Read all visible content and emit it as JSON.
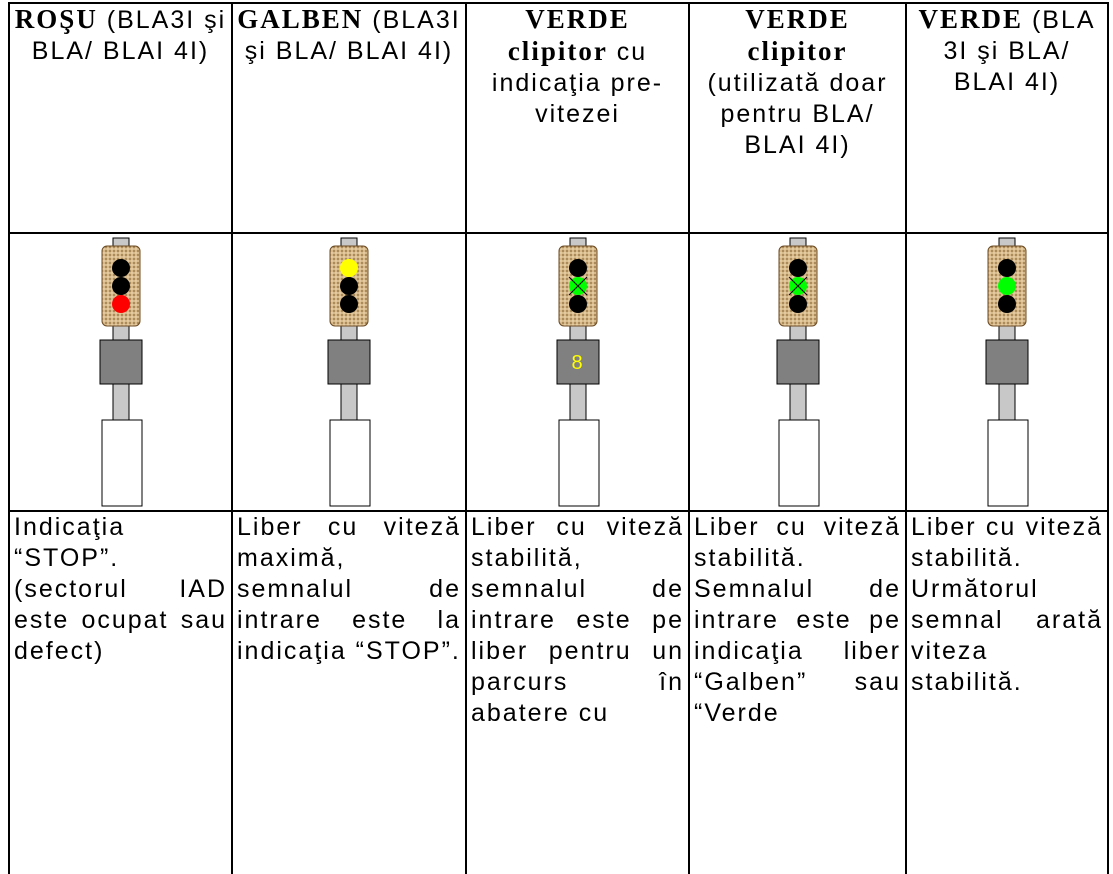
{
  "table": {
    "header": [
      {
        "bold": "ROŞU",
        "text": "(BLA3I şi BLA/ BLAI 4I)"
      },
      {
        "bold": "GALBEN",
        "text": "(BLA3I şi BLA/ BLAI 4I)"
      },
      {
        "bold": "VERDE clipitor",
        "text": "cu indicaţia pre-vitezei"
      },
      {
        "bold": "VERDE clipitor",
        "text": "(utilizată doar pentru BLA/ BLAI 4I)"
      },
      {
        "bold": "VERDE",
        "text": "(BLA 3I şi BLA/ BLAI 4I)"
      }
    ],
    "signals": [
      {
        "lamps": [
          "#000000",
          "#000000",
          "#ff0000"
        ],
        "flashing": false
      },
      {
        "lamps": [
          "#ffff00",
          "#000000",
          "#000000"
        ],
        "flashing": false
      },
      {
        "lamps": [
          "#000000",
          "#00ff00",
          "#000000"
        ],
        "flashing": true,
        "speed": "8"
      },
      {
        "lamps": [
          "#000000",
          "#00ff00",
          "#000000"
        ],
        "flashing": true
      },
      {
        "lamps": [
          "#000000",
          "#00ff00",
          "#000000"
        ],
        "flashing": false
      }
    ],
    "descriptions": [
      "Indicaţia “STOP”. (sectorul IAD este ocupat sau defect)",
      "Liber cu viteză maximă, semnalul de intrare este la indicaţia “STOP”.",
      "Liber cu viteză stabilită, semnalul de intrare este pe liber pentru un parcurs în abatere cu",
      "Liber cu viteză stabilită. Semnalul de intrare este pe indicaţia liber “Galben” sau “Verde",
      "Liber cu viteză stabilită. Următorul semnal arată viteza stabilită."
    ]
  }
}
